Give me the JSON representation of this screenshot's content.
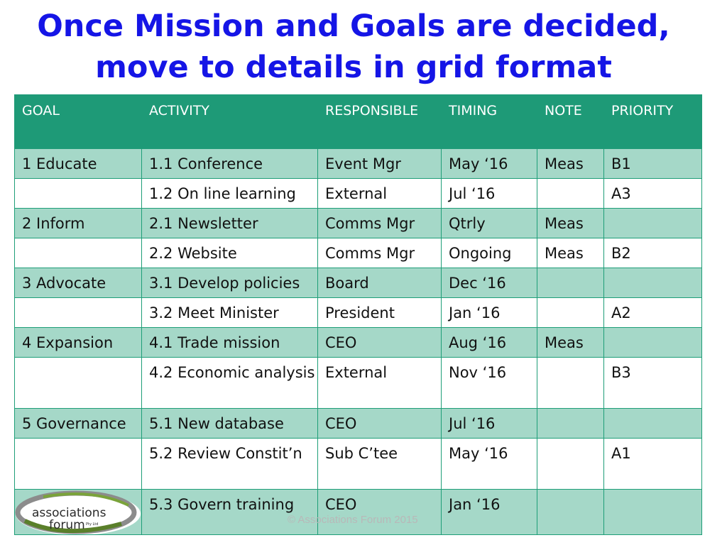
{
  "title": {
    "line1": "Once Mission and Goals are decided,",
    "line2": "move to details in grid format"
  },
  "table": {
    "headers": [
      "GOAL",
      "ACTIVITY",
      "RESPONSIBLE",
      "TIMING",
      "NOTE",
      "PRIORITY"
    ],
    "rows": [
      [
        "1 Educate",
        "1.1 Conference",
        "Event Mgr",
        "May ‘16",
        "Meas",
        "B1"
      ],
      [
        "",
        "1.2 On line learning",
        "External",
        "Jul ‘16",
        "",
        "A3"
      ],
      [
        "2 Inform",
        "2.1 Newsletter",
        "Comms Mgr",
        "Qtrly",
        "Meas",
        ""
      ],
      [
        "",
        "2.2 Website",
        "Comms Mgr",
        "Ongoing",
        "Meas",
        "B2"
      ],
      [
        "3 Advocate",
        "3.1 Develop policies",
        "Board",
        "Dec ‘16",
        "",
        ""
      ],
      [
        "",
        "3.2 Meet Minister",
        "President",
        "Jan ‘16",
        "",
        "A2"
      ],
      [
        "4 Expansion",
        "4.1 Trade mission",
        "CEO",
        "Aug ‘16",
        "Meas",
        ""
      ],
      [
        "",
        "4.2 Economic analysis",
        "External",
        "Nov ‘16",
        "",
        "B3"
      ],
      [
        "5 Governance",
        "5.1 New database",
        "CEO",
        "Jul ‘16",
        "",
        ""
      ],
      [
        "",
        "5.2 Review Constit’n",
        "Sub C’tee",
        "May ‘16",
        "",
        "A1"
      ],
      [
        "",
        "5.3 Govern training",
        "CEO",
        "Jan ‘16",
        "",
        ""
      ]
    ]
  },
  "logo": {
    "line1": "associations",
    "line2": "forum",
    "suffix": "Pty Ltd"
  },
  "footer": "© Associations Forum 2015"
}
